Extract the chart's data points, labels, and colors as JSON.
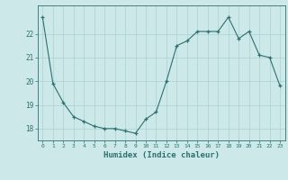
{
  "x": [
    0,
    1,
    2,
    3,
    4,
    5,
    6,
    7,
    8,
    9,
    10,
    11,
    12,
    13,
    14,
    15,
    16,
    17,
    18,
    19,
    20,
    21,
    22,
    23
  ],
  "y": [
    22.7,
    19.9,
    19.1,
    18.5,
    18.3,
    18.1,
    18.0,
    18.0,
    17.9,
    17.8,
    18.4,
    18.7,
    20.0,
    21.5,
    21.7,
    22.1,
    22.1,
    22.1,
    22.7,
    21.8,
    22.1,
    21.1,
    21.0,
    19.8
  ],
  "line_color": "#2d7070",
  "bg_color": "#cce8e8",
  "grid_color": "#aad0d0",
  "xlabel": "Humidex (Indice chaleur)",
  "ylabel_ticks": [
    18,
    19,
    20,
    21,
    22
  ],
  "xlim": [
    -0.5,
    23.5
  ],
  "ylim": [
    17.5,
    23.2
  ],
  "tick_color": "#2d7070",
  "label_color": "#2d7070"
}
